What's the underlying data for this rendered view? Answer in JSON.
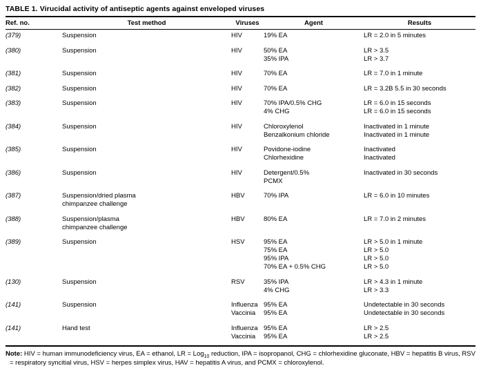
{
  "table": {
    "title": "TABLE 1. Virucidal activity of antiseptic agents against enveloped viruses",
    "columns": [
      "Ref. no.",
      "Test method",
      "Viruses",
      "Agent",
      "Results"
    ],
    "rows": [
      {
        "ref": "(379)",
        "test_method": [
          "Suspension"
        ],
        "viruses": [
          "HIV"
        ],
        "agent": [
          "19% EA"
        ],
        "results": [
          "LR = 2.0 in 5 minutes"
        ]
      },
      {
        "ref": "(380)",
        "test_method": [
          "Suspension"
        ],
        "viruses": [
          "HIV"
        ],
        "agent": [
          "50% EA",
          "35% IPA"
        ],
        "results": [
          "LR > 3.5",
          "LR > 3.7"
        ]
      },
      {
        "ref": "(381)",
        "test_method": [
          "Suspension"
        ],
        "viruses": [
          "HIV"
        ],
        "agent": [
          "70% EA"
        ],
        "results": [
          "LR = 7.0 in 1 minute"
        ]
      },
      {
        "ref": "(382)",
        "test_method": [
          "Suspension"
        ],
        "viruses": [
          "HIV"
        ],
        "agent": [
          "70% EA"
        ],
        "results": [
          "LR = 3.2B 5.5 in 30 seconds"
        ]
      },
      {
        "ref": "(383)",
        "test_method": [
          "Suspension"
        ],
        "viruses": [
          "HIV"
        ],
        "agent": [
          "70% IPA/0.5% CHG",
          "4% CHG"
        ],
        "results": [
          "LR = 6.0 in 15 seconds",
          "LR = 6.0 in 15 seconds"
        ]
      },
      {
        "ref": "(384)",
        "test_method": [
          "Suspension"
        ],
        "viruses": [
          "HIV"
        ],
        "agent": [
          "Chloroxylenol",
          "Benzalkonium chloride"
        ],
        "results": [
          "Inactivated in 1 minute",
          "Inactivated in 1 minute"
        ]
      },
      {
        "ref": "(385)",
        "test_method": [
          "Suspension"
        ],
        "viruses": [
          "HIV"
        ],
        "agent": [
          "Povidone-iodine",
          "Chlorhexidine"
        ],
        "results": [
          "Inactivated",
          "Inactivated"
        ]
      },
      {
        "ref": "(386)",
        "test_method": [
          "Suspension"
        ],
        "viruses": [
          "HIV"
        ],
        "agent": [
          "Detergent/0.5%",
          "PCMX"
        ],
        "results": [
          "Inactivated in 30 seconds"
        ]
      },
      {
        "ref": "(387)",
        "test_method": [
          "Suspension/dried plasma",
          "chimpanzee challenge"
        ],
        "viruses": [
          "HBV"
        ],
        "agent": [
          "70% IPA"
        ],
        "results": [
          "LR = 6.0 in 10 minutes"
        ]
      },
      {
        "ref": "(388)",
        "test_method": [
          "Suspension/plasma",
          "chimpanzee challenge"
        ],
        "viruses": [
          "HBV"
        ],
        "agent": [
          "80% EA"
        ],
        "results": [
          "LR = 7.0 in 2 minutes"
        ]
      },
      {
        "ref": "(389)",
        "test_method": [
          "Suspension"
        ],
        "viruses": [
          "HSV"
        ],
        "agent": [
          "95% EA",
          "75% EA",
          "95% IPA",
          "70% EA + 0.5% CHG"
        ],
        "results": [
          "LR > 5.0 in 1 minute",
          "LR > 5.0",
          "LR > 5.0",
          "LR > 5.0"
        ]
      },
      {
        "ref": "(130)",
        "test_method": [
          "Suspension"
        ],
        "viruses": [
          "RSV"
        ],
        "agent": [
          "35% IPA",
          "4% CHG"
        ],
        "results": [
          "LR > 4.3 in 1 minute",
          "LR > 3.3"
        ]
      },
      {
        "ref": "(141)",
        "test_method": [
          "Suspension"
        ],
        "viruses": [
          "Influenza",
          "Vaccinia"
        ],
        "agent": [
          "95% EA",
          "95% EA"
        ],
        "results": [
          "Undetectable in 30 seconds",
          "Undetectable in 30 seconds"
        ]
      },
      {
        "ref": "(141)",
        "test_method": [
          "Hand test"
        ],
        "viruses": [
          "Influenza",
          "Vaccinia"
        ],
        "agent": [
          "95% EA",
          "95% EA"
        ],
        "results": [
          "LR > 2.5",
          "LR > 2.5"
        ]
      }
    ],
    "note": {
      "label": "Note:",
      "part1": " HIV = human immunodeficiency virus, EA = ethanol, LR = Log",
      "subscript": "10",
      "part2": " reduction, IPA = isopropanol, CHG = chlorhexidine gluconate, HBV = hepatitis B virus, RSV = respiratory syncitial virus, HSV = herpes simplex virus, HAV = hepatitis A virus, and PCMX = chloroxylenol."
    }
  }
}
